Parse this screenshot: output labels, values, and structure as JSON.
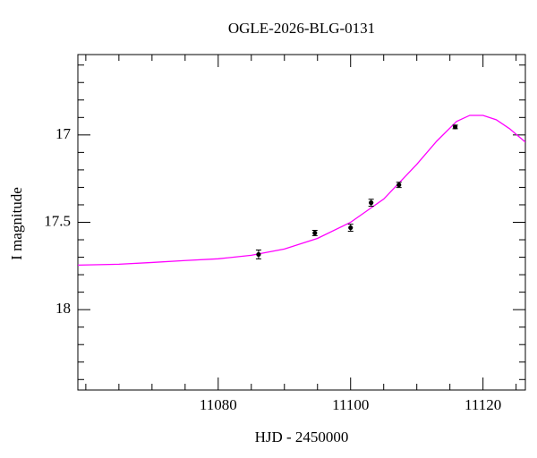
{
  "chart_data": {
    "type": "scatter",
    "title": "OGLE-2026-BLG-0131",
    "xlabel": "HJD - 2450000",
    "ylabel": "I magnitude",
    "xlim": [
      11058.8,
      11126.4
    ],
    "ylim": [
      18.46,
      16.54
    ],
    "xticks": [
      11080,
      11100,
      11120
    ],
    "yticks": [
      17,
      17.5,
      18
    ],
    "xminorticks": [
      11060,
      11065,
      11070,
      11075,
      11085,
      11090,
      11095,
      11105,
      11110,
      11115,
      11125
    ],
    "yminorticks": [
      16.6,
      16.7,
      16.8,
      16.9,
      17.1,
      17.2,
      17.3,
      17.4,
      17.6,
      17.7,
      17.8,
      17.9,
      18.1,
      18.2,
      18.3,
      18.4
    ],
    "points": {
      "color": "#000000",
      "x": [
        11086.1,
        11094.6,
        11100.0,
        11103.1,
        11107.3,
        11115.8
      ],
      "values": [
        17.684,
        17.561,
        17.531,
        17.388,
        17.286,
        16.954
      ],
      "errors": [
        0.025,
        0.015,
        0.02,
        0.02,
        0.015,
        0.01
      ]
    },
    "model": {
      "color": "#ff00ff",
      "x": [
        11058.8,
        11065,
        11070,
        11075,
        11080,
        11085,
        11090,
        11095,
        11100,
        11105,
        11110,
        11113,
        11116,
        11118,
        11120,
        11122,
        11124,
        11126.4
      ],
      "values": [
        17.745,
        17.74,
        17.73,
        17.719,
        17.709,
        17.689,
        17.653,
        17.592,
        17.5,
        17.367,
        17.168,
        17.036,
        16.923,
        16.888,
        16.888,
        16.913,
        16.964,
        17.041
      ]
    }
  }
}
